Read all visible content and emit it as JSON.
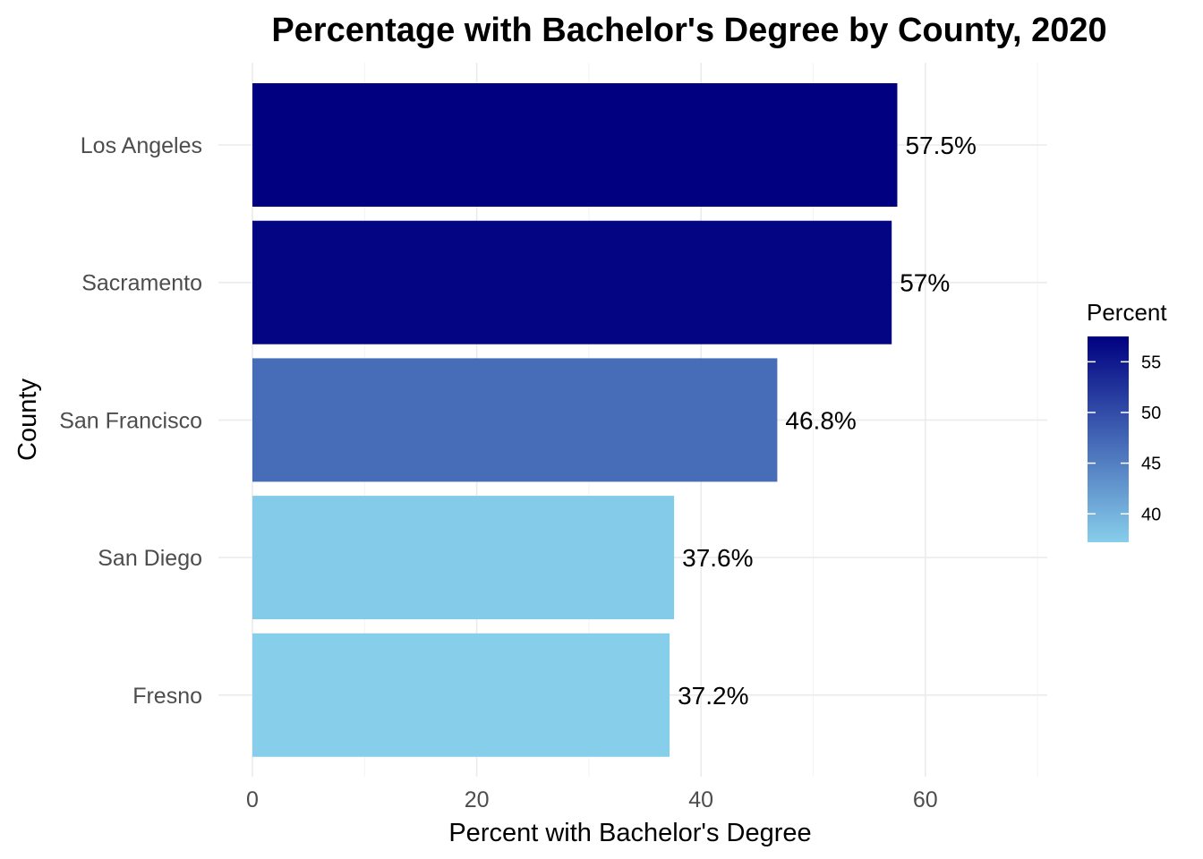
{
  "chart_data": {
    "type": "bar",
    "orientation": "horizontal",
    "title": "Percentage with Bachelor's Degree by County, 2020",
    "xlabel": "Percent with Bachelor's Degree",
    "ylabel": "County",
    "categories": [
      "Los Angeles",
      "Sacramento",
      "San Francisco",
      "San Diego",
      "Fresno"
    ],
    "values": [
      57.5,
      57,
      46.8,
      37.6,
      37.2
    ],
    "data_labels": [
      "57.5%",
      "57%",
      "46.8%",
      "37.6%",
      "37.2%"
    ],
    "xlim": [
      0,
      70
    ],
    "x_ticks": [
      0,
      20,
      40,
      60
    ],
    "x_tick_labels": [
      "0",
      "20",
      "40",
      "60"
    ],
    "grid": true,
    "legend": {
      "title": "Percent",
      "placement": "right",
      "type": "colorbar",
      "range": [
        37.2,
        57.5
      ],
      "ticks": [
        40,
        45,
        50,
        55
      ],
      "tick_labels": [
        "40",
        "45",
        "50",
        "55"
      ],
      "color_low": "#87ceeb",
      "color_high": "#000080"
    }
  }
}
